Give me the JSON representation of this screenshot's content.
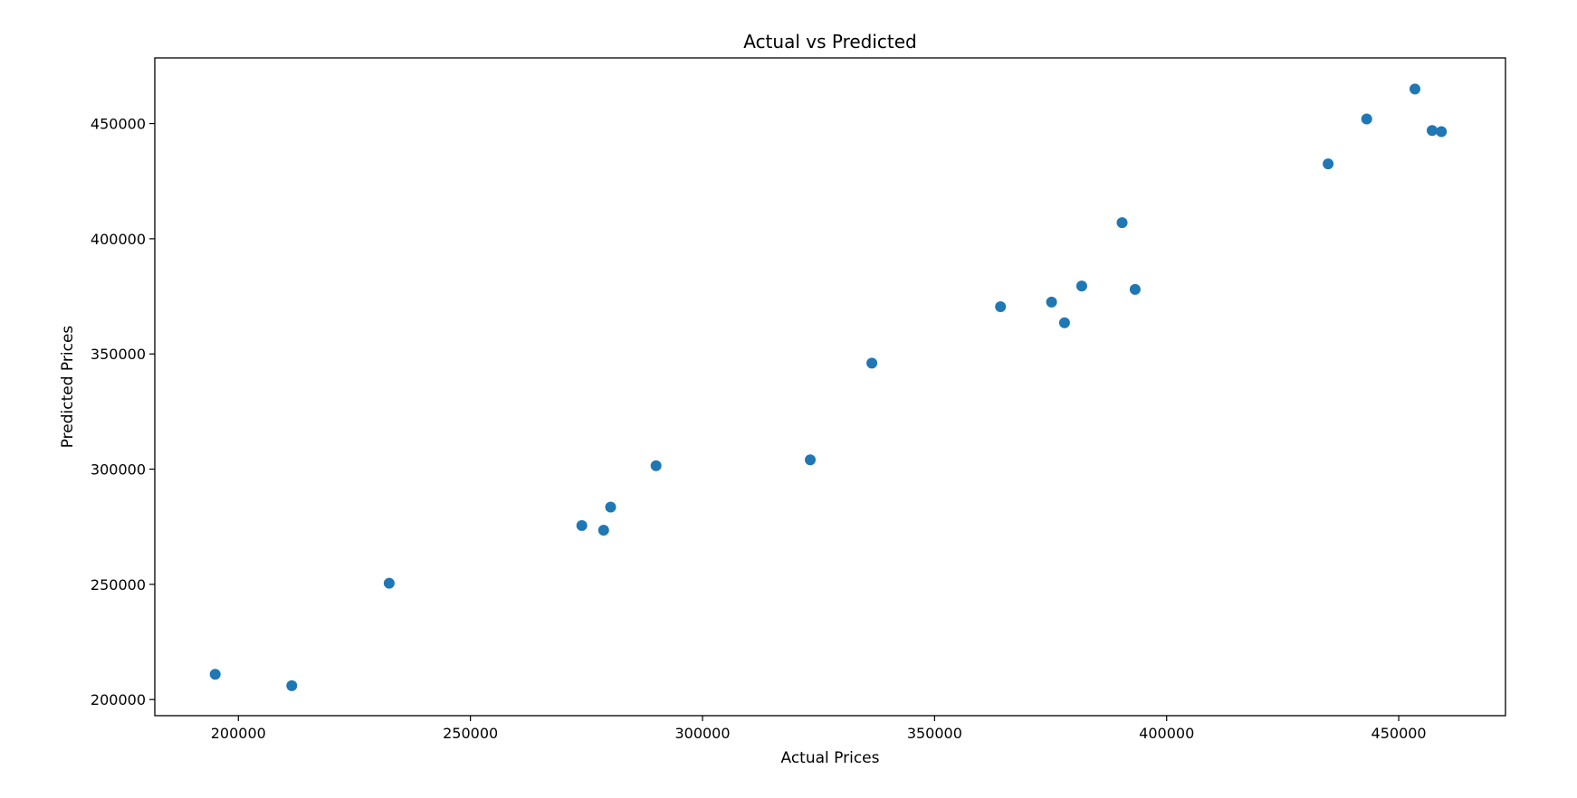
{
  "chart_data": {
    "type": "scatter",
    "title": "Actual vs Predicted",
    "xlabel": "Actual Prices",
    "ylabel": "Predicted Prices",
    "xlim": [
      182000,
      473000
    ],
    "ylim": [
      193000,
      478500
    ],
    "xticks": [
      200000,
      250000,
      300000,
      350000,
      400000,
      450000
    ],
    "yticks": [
      200000,
      250000,
      300000,
      350000,
      400000,
      450000
    ],
    "grid": false,
    "legend": "none",
    "marker_color": "#1f77b4",
    "x": [
      195000,
      211500,
      232500,
      274000,
      278700,
      280200,
      290000,
      323200,
      336500,
      364200,
      375200,
      378000,
      381700,
      390400,
      393200,
      434800,
      443100,
      453500,
      457200,
      459200
    ],
    "y": [
      211000,
      206000,
      250500,
      275500,
      273500,
      283500,
      301500,
      304000,
      346000,
      370500,
      372500,
      363500,
      379500,
      407000,
      378000,
      432500,
      452000,
      465000,
      447000,
      446500
    ]
  }
}
